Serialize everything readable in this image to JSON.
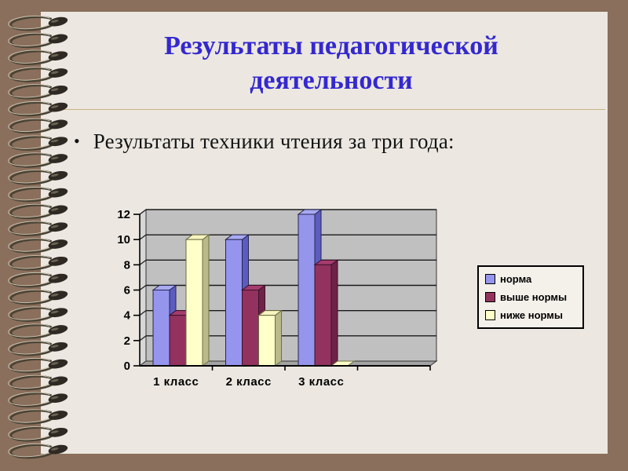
{
  "slide": {
    "title": {
      "text": "Результаты педагогической деятельности",
      "lines": [
        "Результаты педагогической",
        "деятельности"
      ],
      "color": "#3428D0"
    },
    "bullet": {
      "marker": "•",
      "text": "Результаты техники чтения за три года:"
    }
  },
  "theme": {
    "background": "#8A6F5C",
    "page": "#ECE8E1",
    "divider": "#C9B685",
    "title_color": "#3428D0",
    "body_text_color": "#141414"
  },
  "chart_data": {
    "type": "bar",
    "style": "3d-column",
    "title": "",
    "xlabel": "",
    "ylabel": "",
    "categories": [
      "1 класс",
      "2 класс",
      "3 класс"
    ],
    "series": [
      {
        "name": "норма",
        "values": [
          6,
          10,
          12
        ],
        "face": "#9595EE",
        "top": "#A9A9F2",
        "side": "#5C5CC0",
        "edge": "#26264F"
      },
      {
        "name": "выше нормы",
        "values": [
          4,
          6,
          8
        ],
        "face": "#93325F",
        "top": "#A53C6E",
        "side": "#6E2248",
        "edge": "#3A1028"
      },
      {
        "name": "ниже нормы",
        "values": [
          10,
          4,
          0
        ],
        "face": "#FFFFC9",
        "top": "#F7F4BE",
        "side": "#B9B98A",
        "edge": "#6E6E48"
      }
    ],
    "ylim": [
      0,
      12
    ],
    "yticks": [
      0,
      2,
      4,
      6,
      8,
      10,
      12
    ],
    "grid": true,
    "legend": {
      "position": "right",
      "entries": [
        "норма",
        "выше нормы",
        "ниже нормы"
      ]
    },
    "plot_colors": {
      "back_wall": "#C0C0C0",
      "left_wall": "#D7D7D7",
      "floor": "#A3A3A3",
      "gridline": "#1A1A1A",
      "axis": "#000000"
    }
  }
}
